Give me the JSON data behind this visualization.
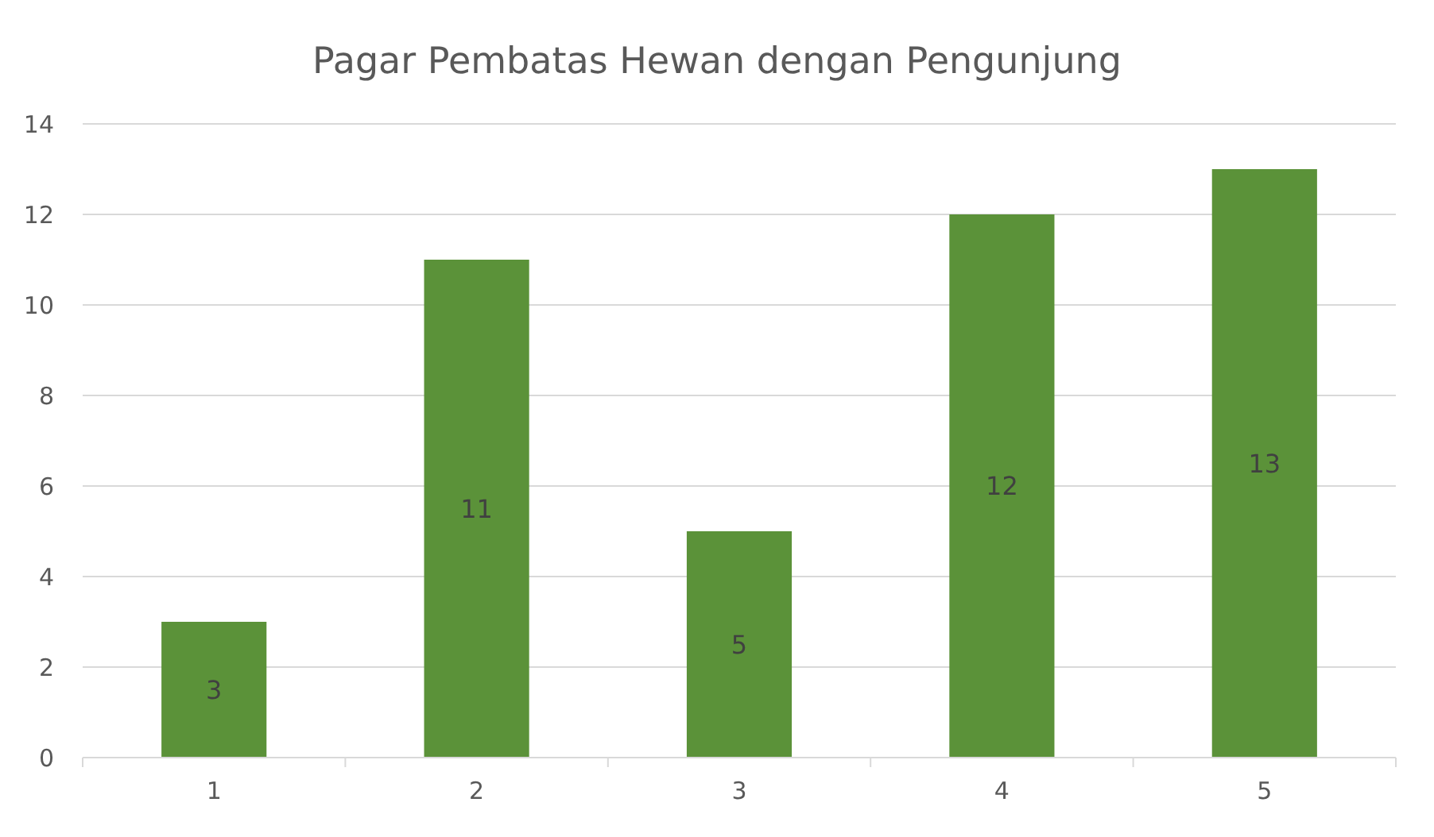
{
  "chart_data": {
    "type": "bar",
    "title": "Pagar Pembatas Hewan dengan Pengunjung",
    "categories": [
      "1",
      "2",
      "3",
      "4",
      "5"
    ],
    "values": [
      3,
      11,
      5,
      12,
      13
    ],
    "color": "#5b9239",
    "ylim": [
      0,
      14
    ],
    "yticks": [
      0,
      2,
      4,
      6,
      8,
      10,
      12,
      14
    ],
    "grid": "y",
    "data_labels": true
  }
}
